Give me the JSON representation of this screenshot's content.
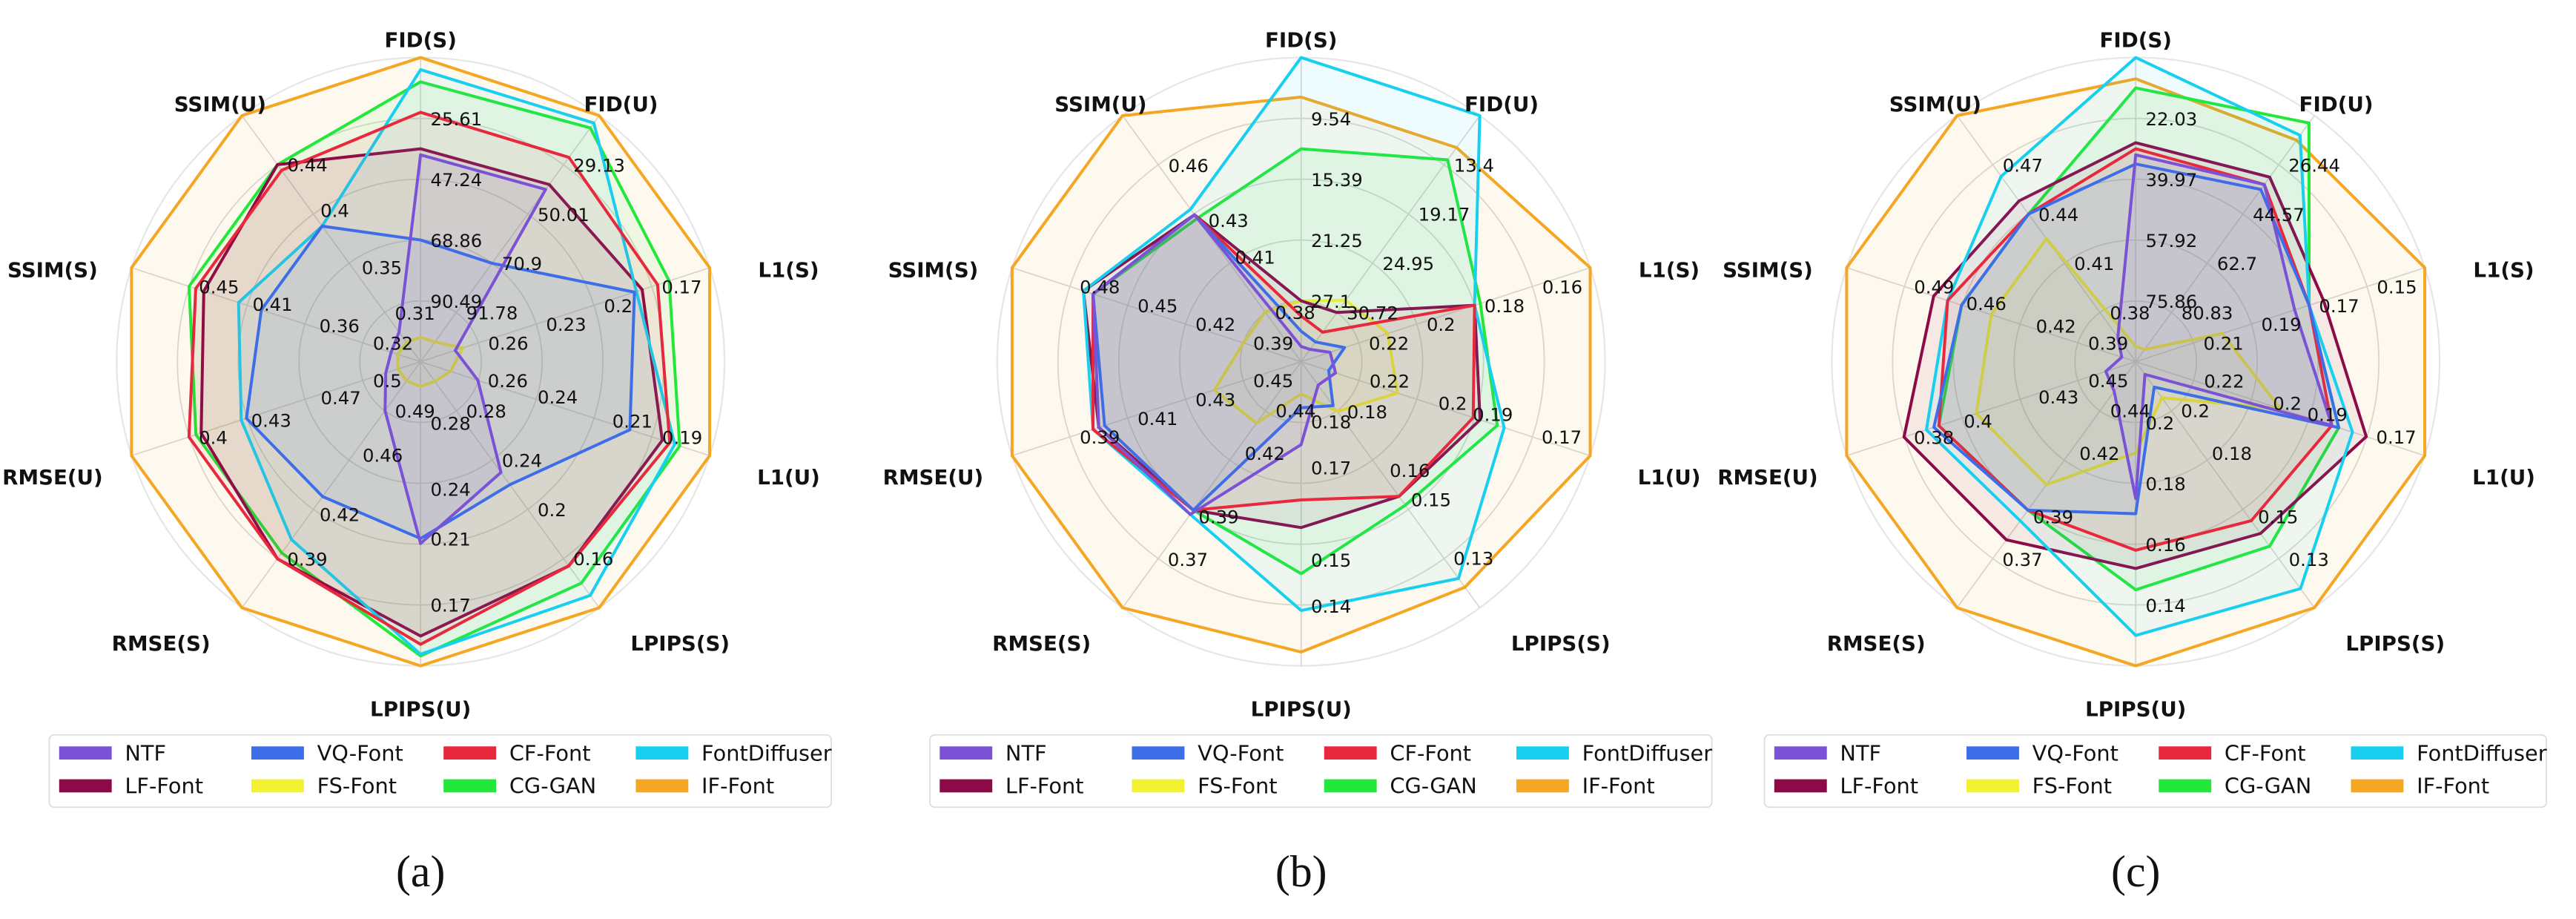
{
  "chart_data": [
    {
      "type": "radar",
      "caption": "(a)",
      "legend": "bottom",
      "axes": [
        {
          "label": "FID(S)",
          "lim": [
            112.12,
            3.98
          ],
          "ticks": [
            90.49,
            68.86,
            47.24,
            25.61
          ]
        },
        {
          "label": "FID(U)",
          "lim": [
            112.66,
            8.25
          ],
          "ticks": [
            91.78,
            70.9,
            50.01,
            29.13
          ]
        },
        {
          "label": "L1(S)",
          "lim": [
            0.29,
            0.14
          ],
          "ticks": [
            0.26,
            0.23,
            0.2,
            0.17
          ]
        },
        {
          "label": "L1(U)",
          "lim": [
            0.283,
            0.167
          ],
          "ticks": [
            0.26,
            0.24,
            0.21,
            0.19
          ]
        },
        {
          "label": "LPIPS(S)",
          "lim": [
            0.32,
            0.12
          ],
          "ticks": [
            0.28,
            0.24,
            0.2,
            0.16
          ]
        },
        {
          "label": "LPIPS(U)",
          "lim": [
            0.317,
            0.133
          ],
          "ticks": [
            0.28,
            0.24,
            0.21,
            0.17
          ]
        },
        {
          "label": "RMSE(S)",
          "lim": [
            0.523,
            0.357
          ],
          "ticks": [
            0.49,
            0.46,
            0.42,
            0.39
          ]
        },
        {
          "label": "RMSE(U)",
          "lim": [
            0.533,
            0.367
          ],
          "ticks": [
            0.5,
            0.47,
            0.43,
            0.4
          ]
        },
        {
          "label": "SSIM(S)",
          "lim": [
            0.277,
            0.493
          ],
          "ticks": [
            0.32,
            0.36,
            0.41,
            0.45
          ]
        },
        {
          "label": "SSIM(U)",
          "lim": [
            0.267,
            0.483
          ],
          "ticks": [
            0.31,
            0.35,
            0.4,
            0.44
          ]
        }
      ],
      "series": [
        {
          "name": "NTF",
          "color": "#7b52d6",
          "values": [
            38.59,
            39.57,
            0.272,
            0.26,
            0.23,
            0.207,
            0.49,
            0.513,
            0.299,
            0.293
          ]
        },
        {
          "name": "VQ-Font",
          "color": "#3d6ee8",
          "values": [
            68.86,
            70.9,
            0.179,
            0.199,
            0.22,
            0.21,
            0.432,
            0.433,
            0.396,
            0.386
          ]
        },
        {
          "name": "CF-Font",
          "color": "#e8283c",
          "values": [
            23.45,
            25.96,
            0.167,
            0.183,
            0.154,
            0.146,
            0.39,
            0.4,
            0.445,
            0.435
          ]
        },
        {
          "name": "FontDiffuser",
          "color": "#18cff0",
          "values": [
            8.3,
            11.38,
            0.178,
            0.181,
            0.13,
            0.14,
            0.403,
            0.43,
            0.413,
            0.386
          ]
        },
        {
          "name": "LF-Font",
          "color": "#8b0a47",
          "values": [
            36.42,
            37.48,
            0.175,
            0.186,
            0.154,
            0.151,
            0.39,
            0.407,
            0.439,
            0.44
          ]
        },
        {
          "name": "FS-Font",
          "color": "#f2f230",
          "values": [
            103.47,
            104.31,
            0.268,
            0.271,
            0.304,
            0.302,
            0.51,
            0.52,
            0.294,
            0.284
          ]
        },
        {
          "name": "CG-GAN",
          "color": "#22e83a",
          "values": [
            12.63,
            13.47,
            0.161,
            0.179,
            0.14,
            0.139,
            0.394,
            0.404,
            0.45,
            0.44
          ]
        },
        {
          "name": "IF-Font",
          "color": "#f5a623",
          "values": [
            3.98,
            8.25,
            0.14,
            0.167,
            0.12,
            0.133,
            0.357,
            0.367,
            0.493,
            0.483
          ]
        }
      ]
    },
    {
      "type": "radar",
      "caption": "(b)",
      "legend": "bottom",
      "axes": [
        {
          "label": "FID(S)",
          "lim": [
            32.95,
            3.69
          ],
          "ticks": [
            27.1,
            21.25,
            15.39,
            9.54
          ]
        },
        {
          "label": "FID(U)",
          "lim": [
            36.49,
            7.63
          ],
          "ticks": [
            30.72,
            24.95,
            19.17,
            13.4
          ]
        },
        {
          "label": "L1(S)",
          "lim": [
            0.24,
            0.14
          ],
          "ticks": [
            0.22,
            0.2,
            0.18,
            0.16
          ]
        },
        {
          "label": "L1(U)",
          "lim": [
            0.237,
            0.153
          ],
          "ticks": [
            0.22,
            0.2,
            0.19,
            0.17
          ]
        },
        {
          "label": "LPIPS(S)",
          "lim": [
            0.197,
            0.113
          ],
          "ticks": [
            0.18,
            0.16,
            0.15,
            0.13
          ]
        },
        {
          "label": "LPIPS(U)",
          "lim": [
            0.193,
            0.127
          ],
          "ticks": [
            0.18,
            0.17,
            0.15,
            0.14
          ]
        },
        {
          "label": "RMSE(S)",
          "lim": [
            0.463,
            0.347
          ],
          "ticks": [
            0.44,
            0.42,
            0.39,
            0.37
          ]
        },
        {
          "label": "RMSE(U)",
          "lim": [
            0.47,
            0.37
          ],
          "ticks": [
            0.45,
            0.43,
            0.41,
            0.39
          ]
        },
        {
          "label": "SSIM(S)",
          "lim": [
            0.36,
            0.51
          ],
          "ticks": [
            0.39,
            0.42,
            0.45,
            0.48
          ]
        },
        {
          "label": "SSIM(U)",
          "lim": [
            0.353,
            0.487
          ],
          "ticks": [
            0.38,
            0.41,
            0.43,
            0.46
          ]
        }
      ],
      "series": [
        {
          "name": "NTF",
          "color": "#7b52d6",
          "values": [
            31.49,
            35.05,
            0.23,
            0.227,
            0.189,
            0.175,
            0.391,
            0.4,
            0.468,
            0.433
          ]
        },
        {
          "name": "VQ-Font",
          "color": "#3d6ee8",
          "values": [
            30.02,
            34.18,
            0.225,
            0.229,
            0.182,
            0.183,
            0.393,
            0.402,
            0.468,
            0.433
          ]
        },
        {
          "name": "CF-Font",
          "color": "#e8283c",
          "values": [
            28.56,
            33.03,
            0.18,
            0.187,
            0.151,
            0.163,
            0.393,
            0.398,
            0.468,
            0.433
          ]
        },
        {
          "name": "FontDiffuser",
          "color": "#18cff0",
          "values": [
            3.69,
            7.63,
            0.18,
            0.178,
            0.123,
            0.139,
            0.391,
            0.398,
            0.473,
            0.436
          ]
        },
        {
          "name": "LF-Font",
          "color": "#8b0a47",
          "values": [
            27.1,
            30.72,
            0.18,
            0.185,
            0.151,
            0.157,
            0.393,
            0.4,
            0.473,
            0.433
          ]
        },
        {
          "name": "FS-Font",
          "color": "#f2f230",
          "values": [
            27.1,
            29.28,
            0.21,
            0.209,
            0.18,
            0.186,
            0.434,
            0.44,
            0.39,
            0.38
          ]
        },
        {
          "name": "CG-GAN",
          "color": "#22e83a",
          "values": [
            12.47,
            12.82,
            0.178,
            0.18,
            0.148,
            0.147,
            0.393,
            0.4,
            0.468,
            0.431
          ]
        },
        {
          "name": "IF-Font",
          "color": "#f5a623",
          "values": [
            7.49,
            11.38,
            0.14,
            0.153,
            0.12,
            0.13,
            0.347,
            0.37,
            0.51,
            0.487
          ]
        }
      ]
    },
    {
      "type": "radar",
      "caption": "(c)",
      "legend": "bottom",
      "axes": [
        {
          "label": "FID(S)",
          "lim": [
            93.8,
            4.09
          ],
          "ticks": [
            75.86,
            57.92,
            39.97,
            22.03
          ]
        },
        {
          "label": "FID(U)",
          "lim": [
            98.96,
            8.31
          ],
          "ticks": [
            80.83,
            62.7,
            44.57,
            26.44
          ]
        },
        {
          "label": "L1(S)",
          "lim": [
            0.23,
            0.13
          ],
          "ticks": [
            0.21,
            0.19,
            0.17,
            0.15
          ]
        },
        {
          "label": "L1(U)",
          "lim": [
            0.237,
            0.153
          ],
          "ticks": [
            0.22,
            0.2,
            0.19,
            0.17
          ]
        },
        {
          "label": "LPIPS(S)",
          "lim": [
            0.223,
            0.107
          ],
          "ticks": [
            0.2,
            0.18,
            0.15,
            0.13
          ]
        },
        {
          "label": "LPIPS(U)",
          "lim": [
            0.22,
            0.12
          ],
          "ticks": [
            0.2,
            0.18,
            0.16,
            0.14
          ]
        },
        {
          "label": "RMSE(S)",
          "lim": [
            0.463,
            0.347
          ],
          "ticks": [
            0.44,
            0.42,
            0.39,
            0.37
          ]
        },
        {
          "label": "RMSE(U)",
          "lim": [
            0.473,
            0.357
          ],
          "ticks": [
            0.45,
            0.43,
            0.4,
            0.38
          ]
        },
        {
          "label": "SSIM(S)",
          "lim": [
            0.357,
            0.523
          ],
          "ticks": [
            0.39,
            0.42,
            0.46,
            0.49
          ]
        },
        {
          "label": "SSIM(U)",
          "lim": [
            0.35,
            0.5
          ],
          "ticks": [
            0.38,
            0.41,
            0.44,
            0.47
          ]
        }
      ],
      "series": [
        {
          "name": "NTF",
          "color": "#7b52d6",
          "values": [
            32.8,
            33.69,
            0.175,
            0.18,
            0.217,
            0.175,
            0.449,
            0.461,
            0.365,
            0.365
          ]
        },
        {
          "name": "VQ-Font",
          "color": "#3d6ee8",
          "values": [
            35.49,
            35.5,
            0.17,
            0.178,
            0.211,
            0.17,
            0.393,
            0.392,
            0.457,
            0.44
          ]
        },
        {
          "name": "CF-Font",
          "color": "#e8283c",
          "values": [
            31.0,
            33.69,
            0.17,
            0.18,
            0.148,
            0.158,
            0.393,
            0.394,
            0.465,
            0.44
          ]
        },
        {
          "name": "FontDiffuser",
          "color": "#18cff0",
          "values": [
            4.09,
            15.56,
            0.17,
            0.174,
            0.116,
            0.13,
            0.388,
            0.389,
            0.465,
            0.463
          ]
        },
        {
          "name": "LF-Font",
          "color": "#8b0a47",
          "values": [
            29.21,
            30.97,
            0.165,
            0.17,
            0.142,
            0.152,
            0.379,
            0.38,
            0.473,
            0.448
          ]
        },
        {
          "name": "FS-Font",
          "color": "#f2f230",
          "values": [
            89.31,
            94.43,
            0.2,
            0.195,
            0.206,
            0.19,
            0.405,
            0.409,
            0.44,
            0.425
          ]
        },
        {
          "name": "CG-GAN",
          "color": "#22e83a",
          "values": [
            13.06,
            11.03,
            0.17,
            0.178,
            0.136,
            0.145,
            0.393,
            0.394,
            0.457,
            0.44
          ]
        },
        {
          "name": "IF-Font",
          "color": "#f5a623",
          "values": [
            10.37,
            17.37,
            0.13,
            0.153,
            0.107,
            0.12,
            0.347,
            0.357,
            0.523,
            0.5
          ]
        }
      ]
    }
  ]
}
